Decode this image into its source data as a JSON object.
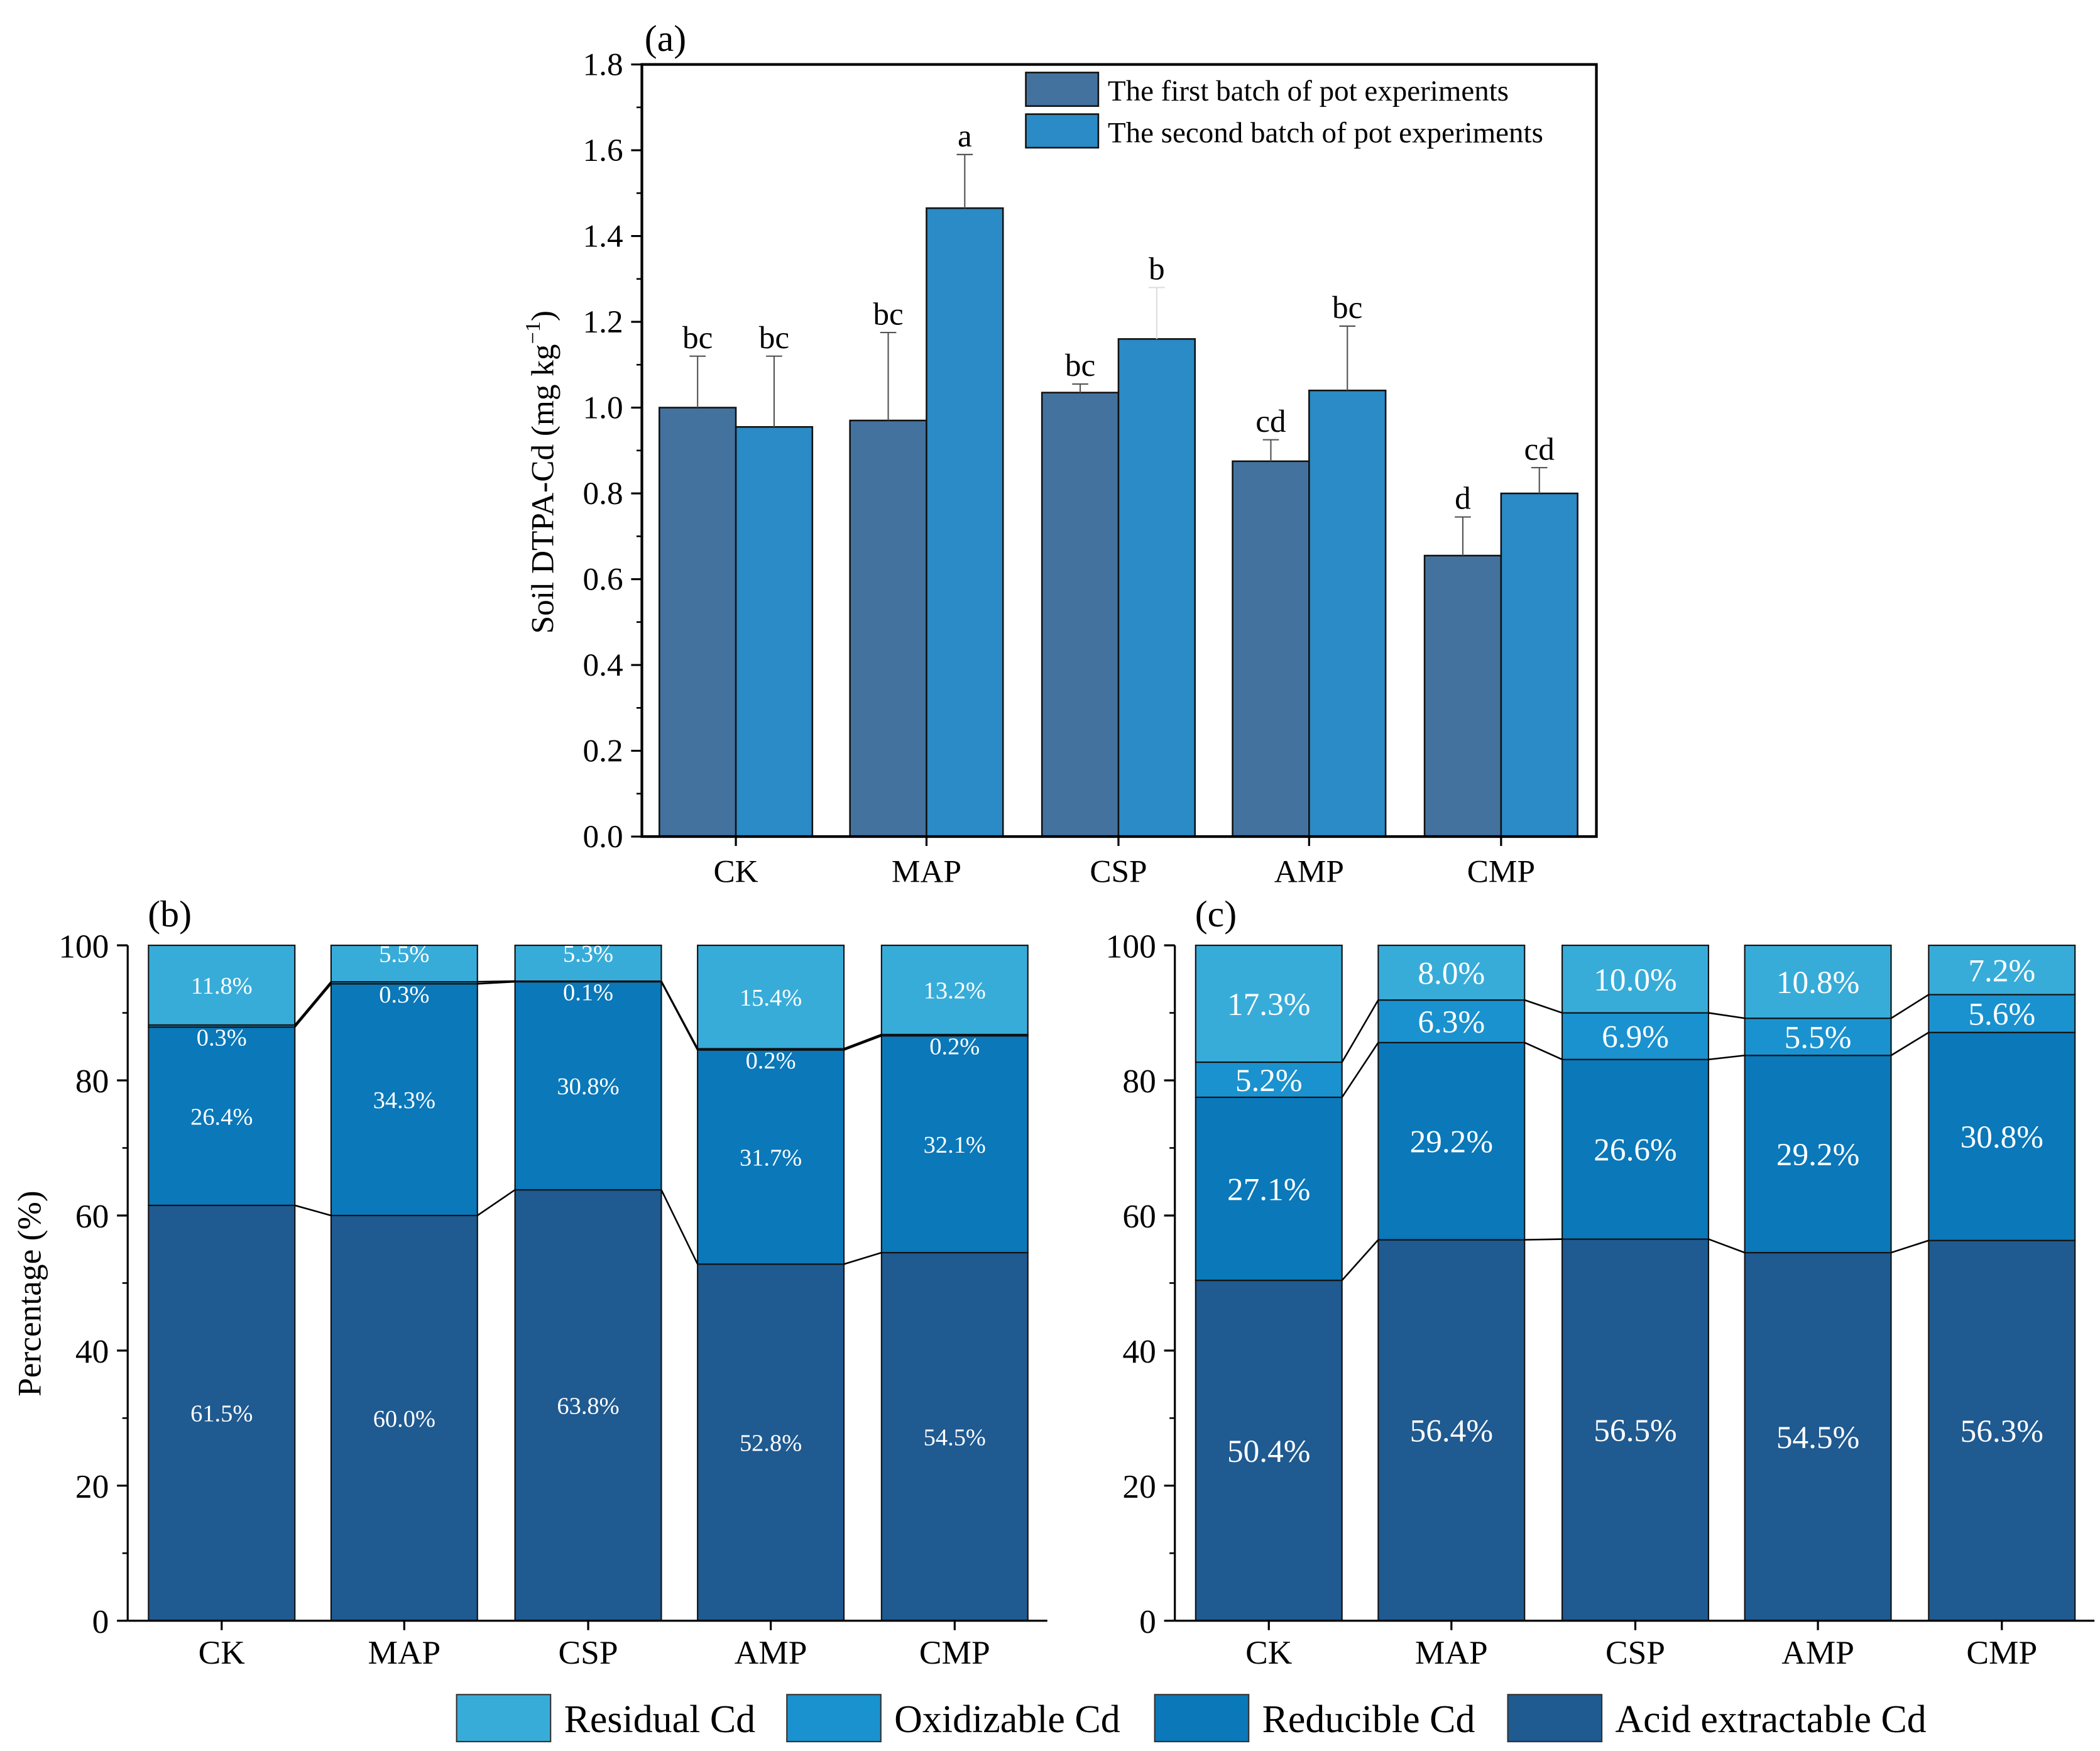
{
  "chart_data": [
    {
      "panel": "(a)",
      "type": "bar",
      "ylabel": "Soil DTPA-Cd (mg kg",
      "ylabel_sup": "−1",
      "ylabel_close": ")",
      "ylim": [
        0,
        1.8
      ],
      "yticks": [
        "0.0",
        "0.2",
        "0.4",
        "0.6",
        "0.8",
        "1.0",
        "1.2",
        "1.4",
        "1.6",
        "1.8"
      ],
      "categories": [
        "CK",
        "MAP",
        "CSP",
        "AMP",
        "CMP"
      ],
      "legend_position": "top-right",
      "series": [
        {
          "name": "The first batch of pot experiments",
          "color": "#44729f",
          "values": [
            1.0,
            0.97,
            1.035,
            0.875,
            0.655
          ],
          "error_top": [
            1.12,
            1.175,
            1.055,
            0.925,
            0.745
          ],
          "letters": [
            "bc",
            "bc",
            "bc",
            "cd",
            "d"
          ]
        },
        {
          "name": "The second batch of pot experiments",
          "color": "#2a8bc6",
          "values": [
            0.955,
            1.465,
            1.16,
            1.04,
            0.8
          ],
          "error_top": [
            1.12,
            1.59,
            1.28,
            1.19,
            0.86
          ],
          "letters": [
            "bc",
            "a",
            "b",
            "bc",
            "cd"
          ]
        }
      ]
    },
    {
      "panel": "(b)",
      "type": "bar",
      "stacked": true,
      "ylabel": "Percentage (%)",
      "ylim": [
        0,
        100
      ],
      "yticks": [
        "0",
        "20",
        "40",
        "60",
        "80",
        "100"
      ],
      "categories": [
        "CK",
        "MAP",
        "CSP",
        "AMP",
        "CMP"
      ],
      "series": [
        {
          "name": "Acid extractable Cd",
          "values": [
            61.5,
            60.0,
            63.8,
            52.8,
            54.5
          ],
          "labels": [
            "61.5%",
            "60.0%",
            "63.8%",
            "52.8%",
            "54.5%"
          ]
        },
        {
          "name": "Reducible Cd",
          "values": [
            26.4,
            34.3,
            30.8,
            31.7,
            32.1
          ],
          "labels": [
            "26.4%",
            "34.3%",
            "30.8%",
            "31.7%",
            "32.1%"
          ]
        },
        {
          "name": "Oxidizable Cd",
          "values": [
            0.3,
            0.3,
            0.1,
            0.2,
            0.2
          ],
          "labels": [
            "0.3%",
            "0.3%",
            "0.1%",
            "0.2%",
            "0.2%"
          ]
        },
        {
          "name": "Residual Cd",
          "values": [
            11.8,
            5.5,
            5.3,
            15.4,
            13.2
          ],
          "labels": [
            "11.8%",
            "5.5%",
            "5.3%",
            "15.4%",
            "13.2%"
          ]
        }
      ]
    },
    {
      "panel": "(c)",
      "type": "bar",
      "stacked": true,
      "ylim": [
        0,
        100
      ],
      "yticks": [
        "0",
        "20",
        "40",
        "60",
        "80",
        "100"
      ],
      "categories": [
        "CK",
        "MAP",
        "CSP",
        "AMP",
        "CMP"
      ],
      "series": [
        {
          "name": "Acid extractable Cd",
          "values": [
            50.4,
            56.4,
            56.5,
            54.5,
            56.3
          ],
          "labels": [
            "50.4%",
            "56.4%",
            "56.5%",
            "54.5%",
            "56.3%"
          ]
        },
        {
          "name": "Reducible Cd",
          "values": [
            27.1,
            29.2,
            26.6,
            29.2,
            30.8
          ],
          "labels": [
            "27.1%",
            "29.2%",
            "26.6%",
            "29.2%",
            "30.8%"
          ]
        },
        {
          "name": "Oxidizable Cd",
          "values": [
            5.2,
            6.3,
            6.9,
            5.5,
            5.6
          ],
          "labels": [
            "5.2%",
            "6.3%",
            "6.9%",
            "5.5%",
            "5.6%"
          ]
        },
        {
          "name": "Residual Cd",
          "values": [
            17.3,
            8.0,
            10.0,
            10.8,
            7.2
          ],
          "labels": [
            "17.3%",
            "8.0%",
            "10.0%",
            "10.8%",
            "7.2%"
          ]
        }
      ]
    }
  ],
  "shared_legend": [
    {
      "name": "Residual Cd",
      "color": "#38acd9"
    },
    {
      "name": "Oxidizable Cd",
      "color": "#1a92cf"
    },
    {
      "name": "Reducible Cd",
      "color": "#0a78b9"
    },
    {
      "name": "Acid extractable Cd",
      "color": "#1f5a91"
    }
  ]
}
